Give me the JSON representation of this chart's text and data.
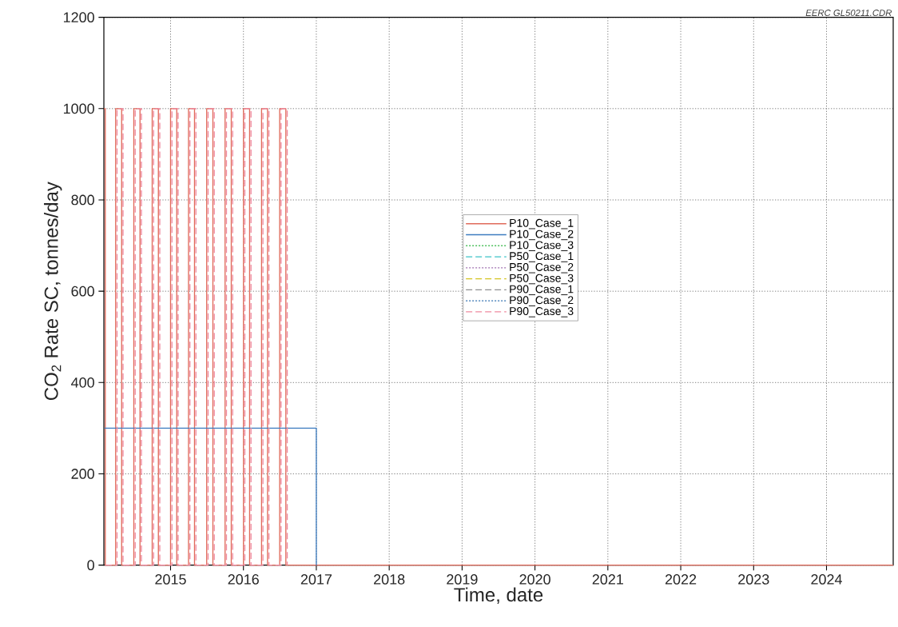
{
  "chart_data": {
    "type": "step",
    "xlabel": "Time, date",
    "ylabel": "CO$_{2}$ Rate SC, tonnes/day",
    "annotations": [
      "EERC GL50211.CDR"
    ],
    "xlim": [
      "2014-02-01",
      "2024-12-01"
    ],
    "ylim": [
      0,
      1200
    ],
    "xticks": [
      "2015",
      "2016",
      "2017",
      "2018",
      "2019",
      "2020",
      "2021",
      "2022",
      "2023",
      "2024"
    ],
    "yticks": [
      0,
      200,
      400,
      600,
      800,
      1000,
      1200
    ],
    "grid": true,
    "legend": "center",
    "series": [
      {
        "name": "P10_Case_1",
        "color": "#e06a5a",
        "line_style": "solid",
        "x": [
          "2014-02-01",
          "2014-02-08",
          "2014-04-01",
          "2014-05-01",
          "2014-07-01",
          "2014-08-01",
          "2014-10-01",
          "2014-11-01",
          "2015-01-01",
          "2015-02-01",
          "2015-04-01",
          "2015-05-01",
          "2015-07-01",
          "2015-08-01",
          "2015-10-01",
          "2015-11-01",
          "2016-01-01",
          "2016-02-01",
          "2016-04-01",
          "2016-05-01",
          "2016-07-01",
          "2016-08-01",
          "2024-12-01"
        ],
        "values": [
          1000,
          0,
          1000,
          0,
          1000,
          0,
          1000,
          0,
          1000,
          0,
          1000,
          0,
          1000,
          0,
          1000,
          0,
          1000,
          0,
          1000,
          0,
          1000,
          0,
          0
        ]
      },
      {
        "name": "P10_Case_2",
        "color": "#3d7cc0",
        "line_style": "solid",
        "x": [
          "2014-02-05",
          "2017-01-01"
        ],
        "values": [
          300,
          0
        ]
      },
      {
        "name": "P10_Case_3",
        "color": "#4cbf5c",
        "line_style": "dotted"
      },
      {
        "name": "P50_Case_1",
        "color": "#3cc4c8",
        "line_style": "dashed"
      },
      {
        "name": "P50_Case_2",
        "color": "#a070b0",
        "line_style": "dotted"
      },
      {
        "name": "P50_Case_3",
        "color": "#d4c420",
        "line_style": "dashed"
      },
      {
        "name": "P90_Case_1",
        "color": "#909090",
        "line_style": "dashed"
      },
      {
        "name": "P90_Case_2",
        "color": "#3070b0",
        "line_style": "dotted"
      },
      {
        "name": "P90_Case_3",
        "color": "#f08aa0",
        "line_style": "dashed",
        "x": [
          "2014-02-08",
          "2014-04-08",
          "2014-05-08",
          "2014-07-08",
          "2014-08-08",
          "2014-10-08",
          "2014-11-08",
          "2015-01-08",
          "2015-02-08",
          "2015-04-08",
          "2015-05-08",
          "2015-07-08",
          "2015-08-08",
          "2015-10-08",
          "2015-11-08",
          "2016-01-08",
          "2016-02-08",
          "2016-04-08",
          "2016-05-08",
          "2016-07-08",
          "2016-08-08"
        ],
        "values": [
          0,
          1000,
          0,
          1000,
          0,
          1000,
          0,
          1000,
          0,
          1000,
          0,
          1000,
          0,
          1000,
          0,
          1000,
          0,
          1000,
          0,
          1000,
          0
        ]
      }
    ]
  }
}
